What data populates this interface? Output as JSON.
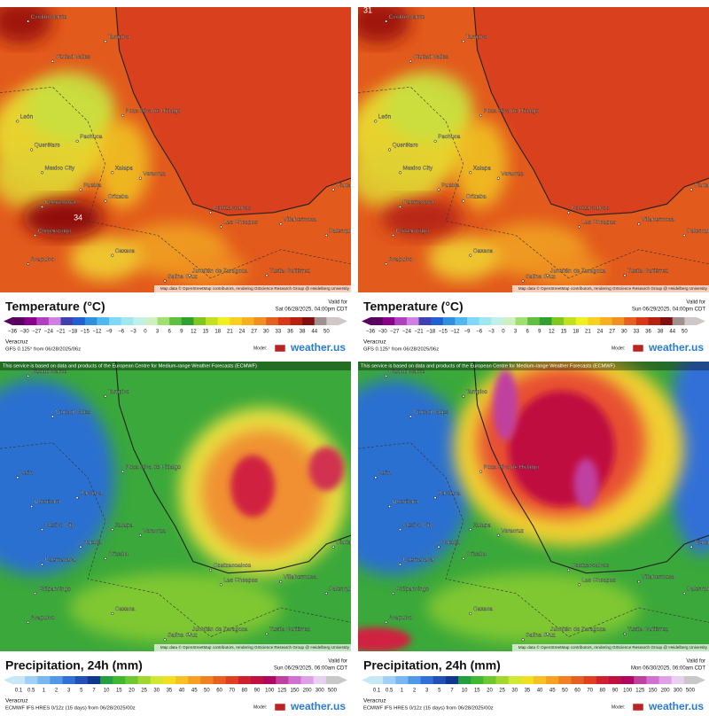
{
  "panels": [
    {
      "title": "Temperature (°C)",
      "valid_label": "Valid for",
      "valid_time": "Sat 06/28/2025, 04:00pm CDT",
      "region": "Veracruz",
      "model": "GFS 0.125° from  06/28/2025/06z",
      "annotation": "34",
      "scale": [
        "−36",
        "−30",
        "−27",
        "−24",
        "−21",
        "−18",
        "−15",
        "−12",
        "−9",
        "−6",
        "−3",
        "0",
        "3",
        "6",
        "9",
        "12",
        "15",
        "18",
        "21",
        "24",
        "27",
        "30",
        "33",
        "36",
        "38",
        "44",
        "50"
      ]
    },
    {
      "title": "Temperature (°C)",
      "valid_label": "Valid for",
      "valid_time": "Sun 06/29/2025, 04:00pm CDT",
      "region": "Veracruz",
      "model": "GFS 0.125° from  06/28/2025/06z",
      "annotation": "31",
      "scale": [
        "−36",
        "−30",
        "−27",
        "−24",
        "−21",
        "−18",
        "−15",
        "−12",
        "−9",
        "−6",
        "−3",
        "0",
        "3",
        "6",
        "9",
        "12",
        "15",
        "18",
        "21",
        "24",
        "27",
        "30",
        "33",
        "36",
        "38",
        "44",
        "50"
      ]
    },
    {
      "title": "Precipitation, 24h (mm)",
      "valid_label": "Valid for",
      "valid_time": "Sun 06/29/2025, 06:00am CDT",
      "region": "Veracruz",
      "model": "ECMWF IFS HRES 0/12z (15 days) from  06/28/2025/00z",
      "note": "This service is based on data and products of the European Centre for Medium-range Weather Forecasts (ECMWF)",
      "scale": [
        "0.1",
        "0.5",
        "1",
        "2",
        "3",
        "5",
        "7",
        "10",
        "15",
        "20",
        "25",
        "30",
        "35",
        "40",
        "45",
        "50",
        "60",
        "70",
        "80",
        "90",
        "100",
        "125",
        "150",
        "200",
        "300",
        "500"
      ]
    },
    {
      "title": "Precipitation, 24h (mm)",
      "valid_label": "Valid for",
      "valid_time": "Mon 06/30/2025, 06:00am CDT",
      "region": "Veracruz",
      "model": "ECMWF IFS HRES 0/12z (15 days) from  06/28/2025/00z",
      "note": "This service is based on data and products of the European Centre for Medium-range Weather Forecasts (ECMWF)",
      "scale": [
        "0.1",
        "0.5",
        "1",
        "2",
        "3",
        "5",
        "7",
        "10",
        "15",
        "20",
        "25",
        "30",
        "35",
        "40",
        "45",
        "50",
        "60",
        "70",
        "80",
        "90",
        "100",
        "125",
        "150",
        "200",
        "300",
        "500"
      ]
    }
  ],
  "cities": [
    "Ciudad Mante",
    "Tampico",
    "Ciudad Valles",
    "Poza Rica de Hidalgo",
    "León",
    "Querétaro",
    "Pachuca",
    "Xalapa",
    "Mexico City",
    "Puebla",
    "Veracruz",
    "Orizaba",
    "Cuernavaca",
    "Chilpancingo",
    "Oaxaca",
    "Acapulco",
    "Coatzacoalcos",
    "Villahermosa",
    "Las Choapas",
    "Ciudad del Carmen",
    "Salina Cruz",
    "Juchitán de Zaragoza",
    "Tuxtla Gutiérrez",
    "Palenque"
  ],
  "attribution": "Map data © OpenStreetMap contributors, rendering GIScience Research Group @ Heidelberg University",
  "model_label": "Model:",
  "brand": "weather.us"
}
